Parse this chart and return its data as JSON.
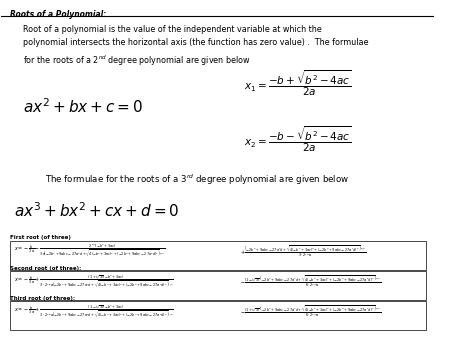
{
  "title": "Roots of a Polynomial:",
  "first_root_label": "First root (of three)",
  "second_root_label": "Second root (of three):",
  "third_root_label": "Third root (of three):",
  "bg_color": "#ffffff",
  "text_color": "#000000"
}
